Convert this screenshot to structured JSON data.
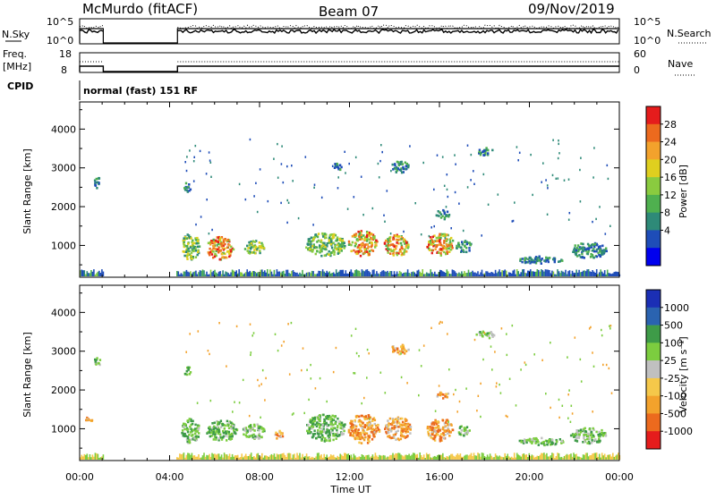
{
  "header": {
    "station": "McMurdo (fitACF)",
    "beam": "Beam 07",
    "date": "09/Nov/2019"
  },
  "status_panels": {
    "nsky_label": "N.Sky",
    "nsky_ticks": [
      "10^5",
      "10^0"
    ],
    "nsearch_label": "N.Search",
    "nsearch_ticks": [
      "10^5",
      "10^0"
    ],
    "freq_label_line1": "Freq.",
    "freq_label_line2": "[MHz]",
    "freq_ticks": [
      "18",
      "8"
    ],
    "nave_label": "Nave",
    "nave_ticks": [
      "60",
      "0"
    ],
    "cpid_label": "CPID",
    "cpid_value": "normal (fast) 151 RF"
  },
  "chart_data": [
    {
      "type": "heatmap",
      "name": "power-panel",
      "ylabel": "Slant Range [km]",
      "yticks": [
        1000,
        2000,
        3000,
        4000
      ],
      "ylim": [
        180,
        4700
      ],
      "xlim": [
        0,
        24
      ],
      "colorbar": {
        "title": "Power [dB]",
        "ticks": [
          "28",
          "24",
          "20",
          "16",
          "12",
          "8",
          "4"
        ],
        "colors": [
          "#0000ee",
          "#1e4db8",
          "#2e8a78",
          "#4fb04f",
          "#8acb3f",
          "#dfcf1f",
          "#f3a22c",
          "#ec6a1e",
          "#e51c1c"
        ]
      },
      "patches": [
        {
          "t0": 4.5,
          "t1": 5.3,
          "r0": 650,
          "r1": 1350,
          "level": "mid"
        },
        {
          "t0": 5.6,
          "t1": 6.8,
          "r0": 650,
          "r1": 1250,
          "level": "high"
        },
        {
          "t0": 7.3,
          "t1": 8.2,
          "r0": 800,
          "r1": 1150,
          "level": "mid"
        },
        {
          "t0": 10.0,
          "t1": 11.8,
          "r0": 750,
          "r1": 1350,
          "level": "mid"
        },
        {
          "t0": 11.9,
          "t1": 13.2,
          "r0": 750,
          "r1": 1400,
          "level": "high"
        },
        {
          "t0": 13.5,
          "t1": 14.6,
          "r0": 750,
          "r1": 1300,
          "level": "high"
        },
        {
          "t0": 15.4,
          "t1": 16.6,
          "r0": 750,
          "r1": 1350,
          "level": "high"
        },
        {
          "t0": 16.7,
          "t1": 17.4,
          "r0": 850,
          "r1": 1150,
          "level": "low"
        },
        {
          "t0": 19.5,
          "t1": 21.5,
          "r0": 550,
          "r1": 750,
          "level": "low"
        },
        {
          "t0": 21.8,
          "t1": 23.4,
          "r0": 700,
          "r1": 1100,
          "level": "low"
        },
        {
          "t0": 13.8,
          "t1": 14.6,
          "r0": 2900,
          "r1": 3200,
          "level": "low"
        },
        {
          "t0": 17.6,
          "t1": 18.4,
          "r0": 3350,
          "r1": 3550,
          "level": "low"
        },
        {
          "t0": 15.8,
          "t1": 16.4,
          "r0": 1700,
          "r1": 1950,
          "level": "low"
        },
        {
          "t0": 0.6,
          "t1": 0.9,
          "r0": 2500,
          "r1": 2800,
          "level": "low"
        },
        {
          "t0": 4.6,
          "t1": 4.9,
          "r0": 2400,
          "r1": 2650,
          "level": "low"
        },
        {
          "t0": 11.2,
          "t1": 11.6,
          "r0": 2950,
          "r1": 3150,
          "level": "low"
        }
      ]
    },
    {
      "type": "heatmap",
      "name": "velocity-panel",
      "ylabel": "Slant Range [km]",
      "yticks": [
        1000,
        2000,
        3000,
        4000
      ],
      "ylim": [
        180,
        4700
      ],
      "xlim": [
        0,
        24
      ],
      "xticks": [
        "00:00",
        "04:00",
        "08:00",
        "12:00",
        "16:00",
        "20:00",
        "00:00"
      ],
      "xlabel": "Time UT",
      "colorbar": {
        "title": "Velocity [m s⁻¹]",
        "ticks": [
          "1000",
          "500",
          "100",
          "25",
          "-25",
          "-100",
          "-500",
          "-1000"
        ],
        "colors": [
          "#e51c1c",
          "#ec6a1e",
          "#f3a22c",
          "#f5c84a",
          "#c0c0c0",
          "#7ccd3f",
          "#3e9b48",
          "#2a63b0",
          "#1b2fb5"
        ]
      },
      "patches": [
        {
          "t0": 4.5,
          "t1": 5.3,
          "r0": 650,
          "r1": 1300,
          "level": "green"
        },
        {
          "t0": 5.6,
          "t1": 7.0,
          "r0": 700,
          "r1": 1250,
          "level": "green"
        },
        {
          "t0": 7.2,
          "t1": 8.2,
          "r0": 750,
          "r1": 1150,
          "level": "green"
        },
        {
          "t0": 8.6,
          "t1": 9.0,
          "r0": 750,
          "r1": 1000,
          "level": "orange"
        },
        {
          "t0": 10.0,
          "t1": 11.8,
          "r0": 700,
          "r1": 1400,
          "level": "green"
        },
        {
          "t0": 11.9,
          "t1": 13.3,
          "r0": 650,
          "r1": 1400,
          "level": "orange"
        },
        {
          "t0": 13.5,
          "t1": 14.7,
          "r0": 700,
          "r1": 1350,
          "level": "orange"
        },
        {
          "t0": 15.4,
          "t1": 16.6,
          "r0": 700,
          "r1": 1300,
          "level": "orange"
        },
        {
          "t0": 16.7,
          "t1": 17.3,
          "r0": 850,
          "r1": 1100,
          "level": "green"
        },
        {
          "t0": 19.4,
          "t1": 21.5,
          "r0": 600,
          "r1": 800,
          "level": "green"
        },
        {
          "t0": 21.8,
          "t1": 23.4,
          "r0": 650,
          "r1": 1050,
          "level": "green"
        },
        {
          "t0": 13.8,
          "t1": 14.6,
          "r0": 2950,
          "r1": 3200,
          "level": "orange"
        },
        {
          "t0": 17.6,
          "t1": 18.4,
          "r0": 3350,
          "r1": 3550,
          "level": "green"
        },
        {
          "t0": 15.8,
          "t1": 16.4,
          "r0": 1800,
          "r1": 2000,
          "level": "orange"
        },
        {
          "t0": 0.6,
          "t1": 0.9,
          "r0": 2650,
          "r1": 2850,
          "level": "green"
        },
        {
          "t0": 4.6,
          "t1": 4.9,
          "r0": 2400,
          "r1": 2650,
          "level": "green"
        },
        {
          "t0": 0.1,
          "t1": 0.6,
          "r0": 1200,
          "r1": 1350,
          "level": "orange"
        }
      ]
    }
  ]
}
